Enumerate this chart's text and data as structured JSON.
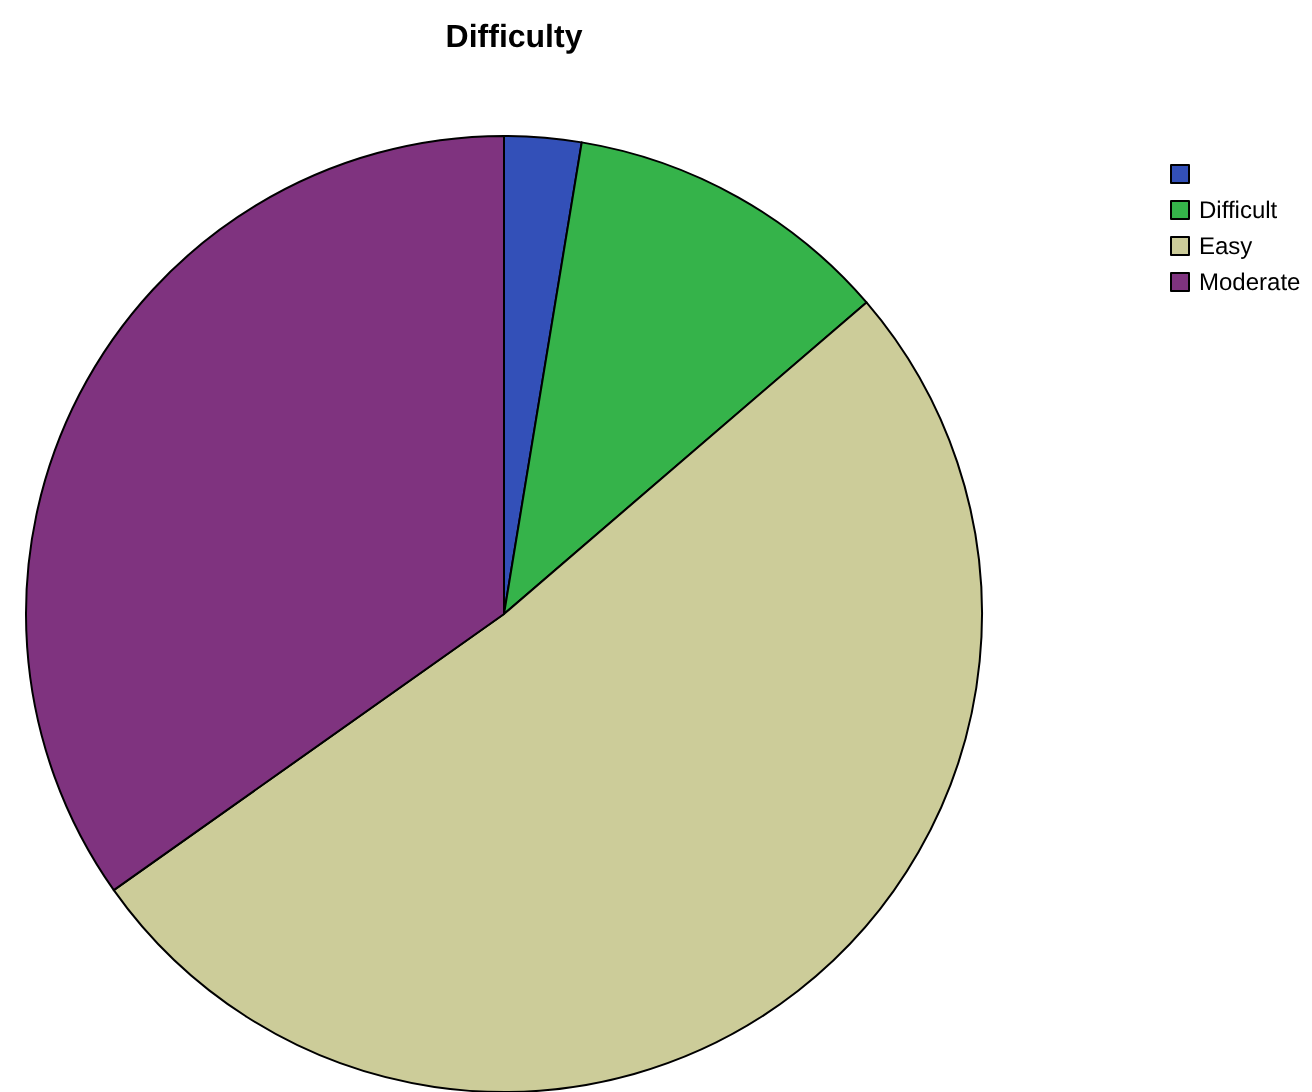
{
  "chart_data": {
    "type": "pie",
    "title": "Difficulty",
    "categories": [
      null,
      "Difficult",
      "Easy",
      "Moderate"
    ],
    "values": [
      2.6,
      11.1,
      51.5,
      34.8
    ],
    "colors": [
      "#3350b8",
      "#35b34a",
      "#cccc99",
      "#7f337f"
    ],
    "legend": "top right"
  }
}
